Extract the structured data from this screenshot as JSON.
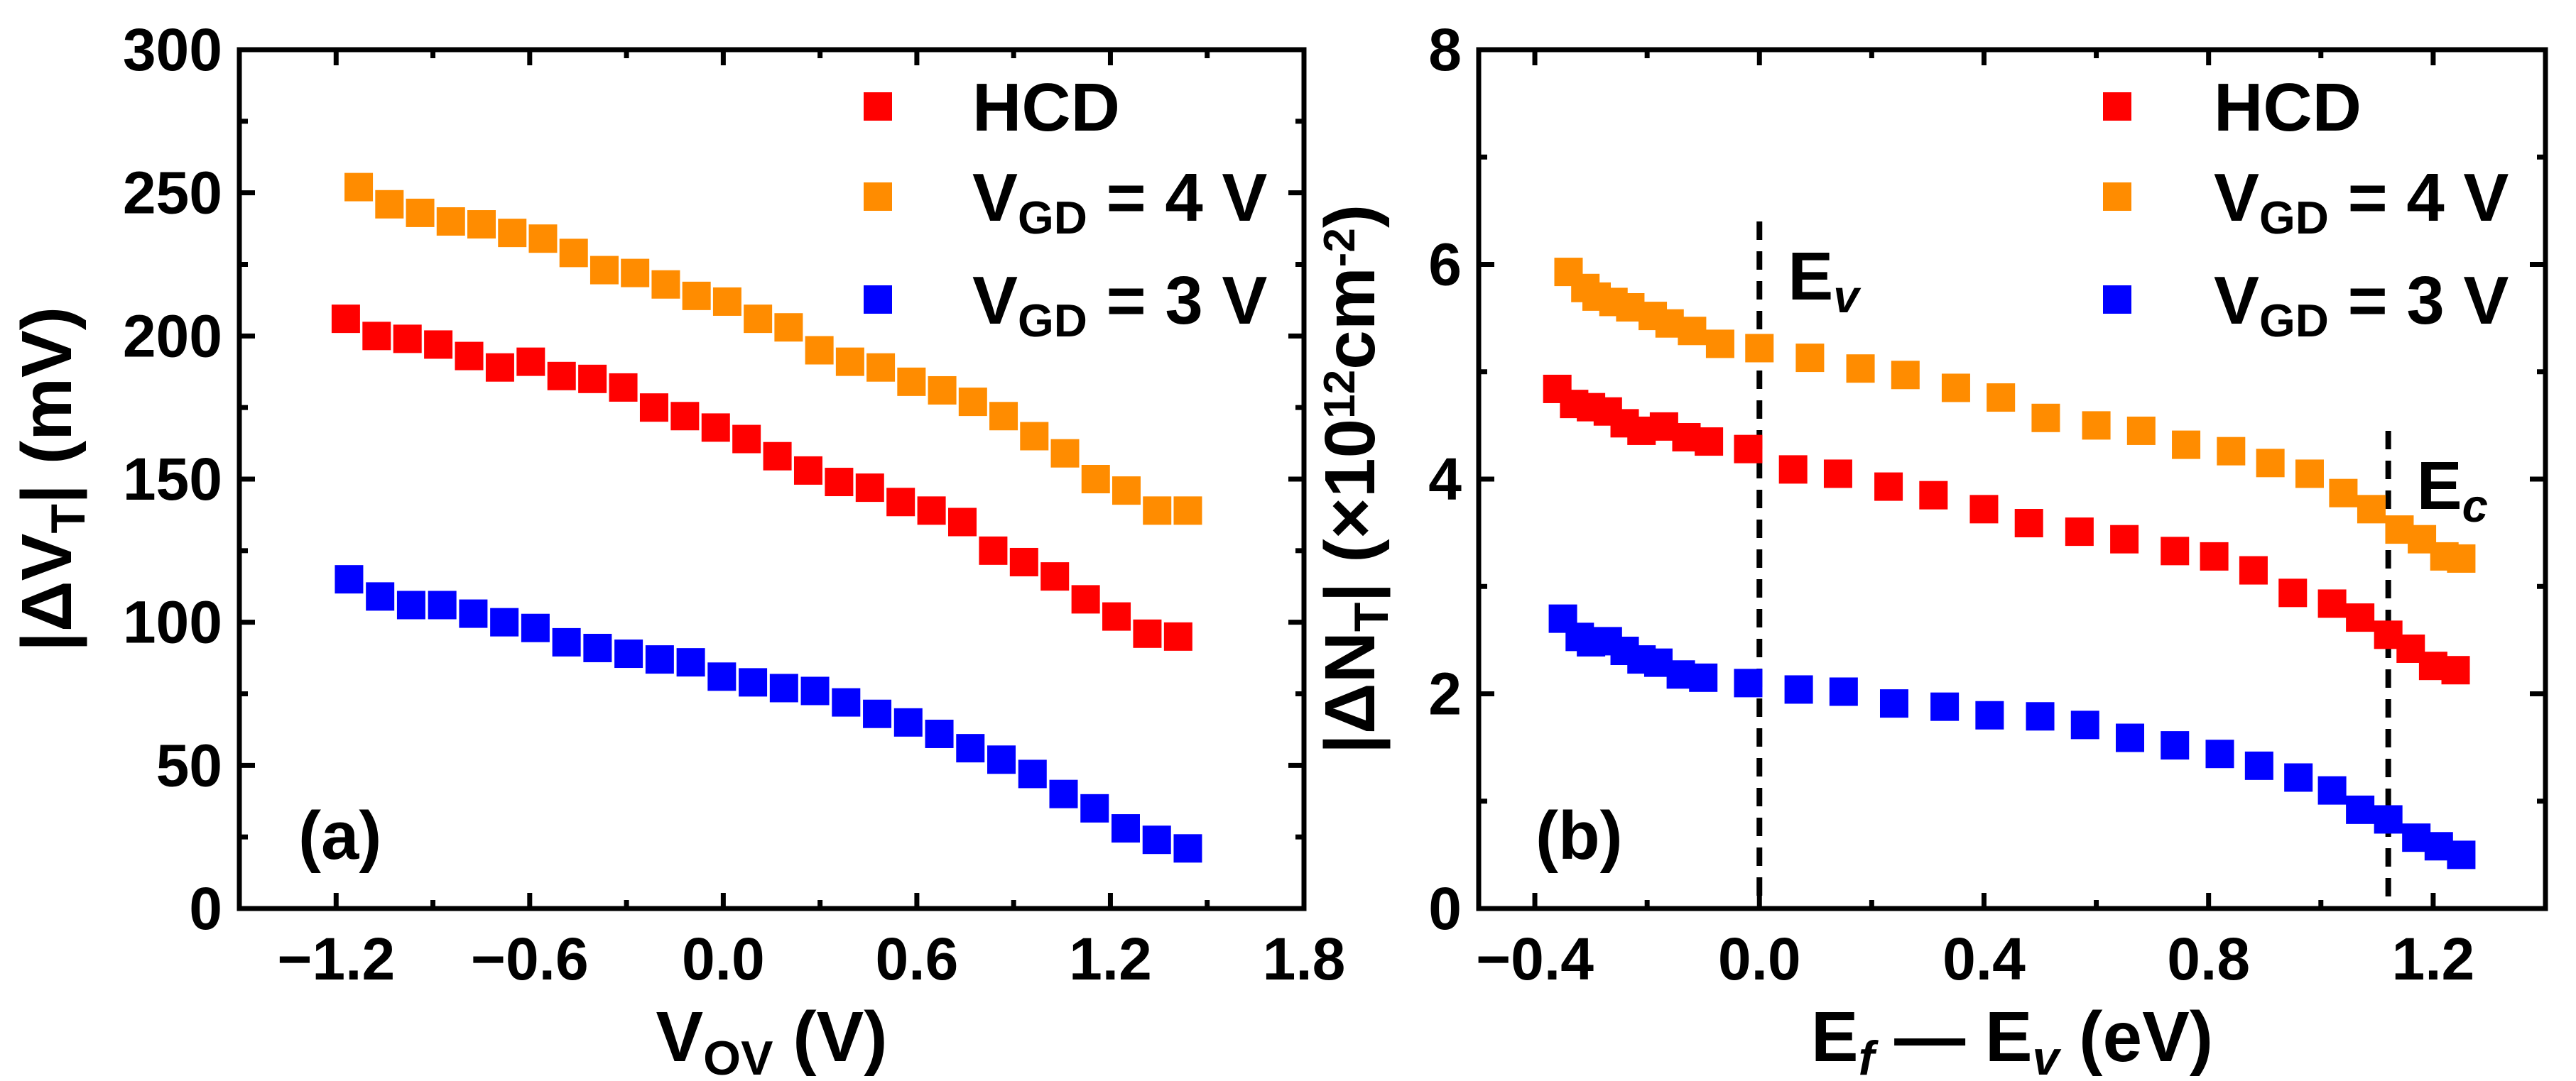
{
  "chart_data": [
    {
      "type": "scatter",
      "panel_label": "(a)",
      "xlabel": [
        {
          "t": "V"
        },
        {
          "t": "OV",
          "sub": true
        },
        {
          "t": " (V)"
        }
      ],
      "ylabel": [
        {
          "t": "|ΔV"
        },
        {
          "t": "T",
          "sub": true
        },
        {
          "t": "| (mV)"
        }
      ],
      "xlim": [
        -1.5,
        1.8
      ],
      "ylim": [
        0,
        300
      ],
      "xticks": [
        -1.2,
        -0.6,
        0.0,
        0.6,
        1.2,
        1.8
      ],
      "xtick_labels": [
        "−1.2",
        "−0.6",
        "0.0",
        "0.6",
        "1.2",
        "1.8"
      ],
      "yticks": [
        0,
        50,
        100,
        150,
        200,
        250,
        300
      ],
      "ytick_labels": [
        "0",
        "50",
        "100",
        "150",
        "200",
        "250",
        "300"
      ],
      "grid": false,
      "legend_position": "top-right",
      "series": [
        {
          "name": "HCD",
          "label": [
            {
              "t": "HCD"
            }
          ],
          "color": "#ff0000",
          "x_start": -1.17,
          "x_end": 1.41,
          "values": [
            206,
            200,
            199,
            197,
            193,
            189,
            191,
            186,
            185,
            182,
            175,
            172,
            168,
            164,
            158,
            153,
            149,
            147,
            142,
            139,
            135,
            125,
            121,
            116,
            108,
            102,
            96,
            95
          ]
        },
        {
          "name": "VGD = 4 V",
          "label": [
            {
              "t": "V"
            },
            {
              "t": "GD",
              "sub": true
            },
            {
              "t": " = 4 V"
            }
          ],
          "color": "#ff8c00",
          "x_start": -1.13,
          "x_end": 1.44,
          "values": [
            252,
            246,
            243,
            240,
            239,
            236,
            234,
            229,
            223,
            222,
            218,
            214,
            212,
            206,
            203,
            195,
            191,
            189,
            184,
            181,
            177,
            172,
            165,
            159,
            150,
            146,
            139,
            139
          ]
        },
        {
          "name": "VGD = 3 V",
          "label": [
            {
              "t": "V"
            },
            {
              "t": "GD",
              "sub": true
            },
            {
              "t": " = 3 V"
            }
          ],
          "color": "#0000ff",
          "x_start": -1.16,
          "x_end": 1.44,
          "values": [
            115,
            109,
            106,
            106,
            103,
            100,
            98,
            93,
            91,
            89,
            87,
            86,
            81,
            79,
            77,
            76,
            72,
            68,
            65,
            61,
            56,
            52,
            47,
            40,
            35,
            28,
            24,
            21
          ]
        }
      ],
      "annotations": []
    },
    {
      "type": "scatter",
      "panel_label": "(b)",
      "xlabel": [
        {
          "t": "E"
        },
        {
          "t": "f",
          "sub": true,
          "italic": true
        },
        {
          "t": " — E"
        },
        {
          "t": "v",
          "sub": true,
          "italic": true
        },
        {
          "t": " (eV)"
        }
      ],
      "ylabel": [
        {
          "t": "|ΔN"
        },
        {
          "t": "T",
          "sub": true
        },
        {
          "t": "| (×10"
        },
        {
          "t": "12",
          "sup": true
        },
        {
          "t": "cm"
        },
        {
          "t": "-2",
          "sup": true
        },
        {
          "t": ")"
        }
      ],
      "xlim": [
        -0.5,
        1.4
      ],
      "ylim": [
        0,
        8
      ],
      "xticks": [
        -0.4,
        0.0,
        0.4,
        0.8,
        1.2
      ],
      "xtick_labels": [
        "−0.4",
        "0.0",
        "0.4",
        "0.8",
        "1.2"
      ],
      "yticks": [
        0,
        2,
        4,
        6,
        8
      ],
      "ytick_labels": [
        "0",
        "2",
        "4",
        "6",
        "8"
      ],
      "grid": false,
      "legend_position": "top-right",
      "series": [
        {
          "name": "HCD",
          "label": [
            {
              "t": "HCD"
            }
          ],
          "color": "#ff0000",
          "x": [
            -0.36,
            -0.33,
            -0.3,
            -0.27,
            -0.24,
            -0.21,
            -0.17,
            -0.13,
            -0.09,
            -0.02,
            0.06,
            0.14,
            0.23,
            0.31,
            0.4,
            0.48,
            0.57,
            0.65,
            0.74,
            0.81,
            0.88,
            0.95,
            1.02,
            1.07,
            1.12,
            1.16,
            1.2,
            1.24
          ],
          "values": [
            4.84,
            4.7,
            4.67,
            4.63,
            4.52,
            4.45,
            4.49,
            4.39,
            4.35,
            4.28,
            4.09,
            4.05,
            3.93,
            3.85,
            3.72,
            3.59,
            3.51,
            3.44,
            3.33,
            3.28,
            3.15,
            2.94,
            2.84,
            2.71,
            2.55,
            2.42,
            2.26,
            2.22
          ]
        },
        {
          "name": "VGD = 4 V",
          "label": [
            {
              "t": "V"
            },
            {
              "t": "GD",
              "sub": true
            },
            {
              "t": " = 4 V"
            }
          ],
          "color": "#ff8c00",
          "x": [
            -0.34,
            -0.31,
            -0.29,
            -0.26,
            -0.23,
            -0.19,
            -0.16,
            -0.12,
            -0.07,
            0.0,
            0.09,
            0.18,
            0.26,
            0.35,
            0.43,
            0.51,
            0.6,
            0.68,
            0.76,
            0.84,
            0.91,
            0.98,
            1.04,
            1.09,
            1.14,
            1.18,
            1.22,
            1.25
          ],
          "values": [
            5.93,
            5.78,
            5.7,
            5.65,
            5.6,
            5.52,
            5.45,
            5.38,
            5.26,
            5.22,
            5.13,
            5.03,
            4.97,
            4.85,
            4.76,
            4.57,
            4.5,
            4.45,
            4.32,
            4.26,
            4.15,
            4.05,
            3.87,
            3.72,
            3.53,
            3.44,
            3.28,
            3.26
          ]
        },
        {
          "name": "VGD = 3 V",
          "label": [
            {
              "t": "V"
            },
            {
              "t": "GD",
              "sub": true
            },
            {
              "t": " = 3 V"
            }
          ],
          "color": "#0000ff",
          "x": [
            -0.35,
            -0.32,
            -0.3,
            -0.27,
            -0.24,
            -0.21,
            -0.18,
            -0.14,
            -0.1,
            -0.02,
            0.07,
            0.15,
            0.24,
            0.33,
            0.41,
            0.5,
            0.58,
            0.66,
            0.74,
            0.82,
            0.89,
            0.96,
            1.02,
            1.07,
            1.12,
            1.17,
            1.21,
            1.25
          ],
          "values": [
            2.7,
            2.53,
            2.48,
            2.49,
            2.4,
            2.32,
            2.29,
            2.18,
            2.15,
            2.1,
            2.04,
            2.02,
            1.91,
            1.88,
            1.8,
            1.79,
            1.71,
            1.59,
            1.52,
            1.44,
            1.33,
            1.22,
            1.1,
            0.92,
            0.83,
            0.66,
            0.58,
            0.5
          ]
        }
      ],
      "annotations": [
        {
          "label": [
            {
              "t": "E"
            },
            {
              "t": "v",
              "sub": true,
              "italic": true
            }
          ],
          "vline_x": 0.0,
          "vline_ytop": 6.4
        },
        {
          "label": [
            {
              "t": "E"
            },
            {
              "t": "c",
              "sub": true,
              "italic": true
            }
          ],
          "vline_x": 1.12,
          "vline_ytop": 4.45
        }
      ]
    }
  ]
}
